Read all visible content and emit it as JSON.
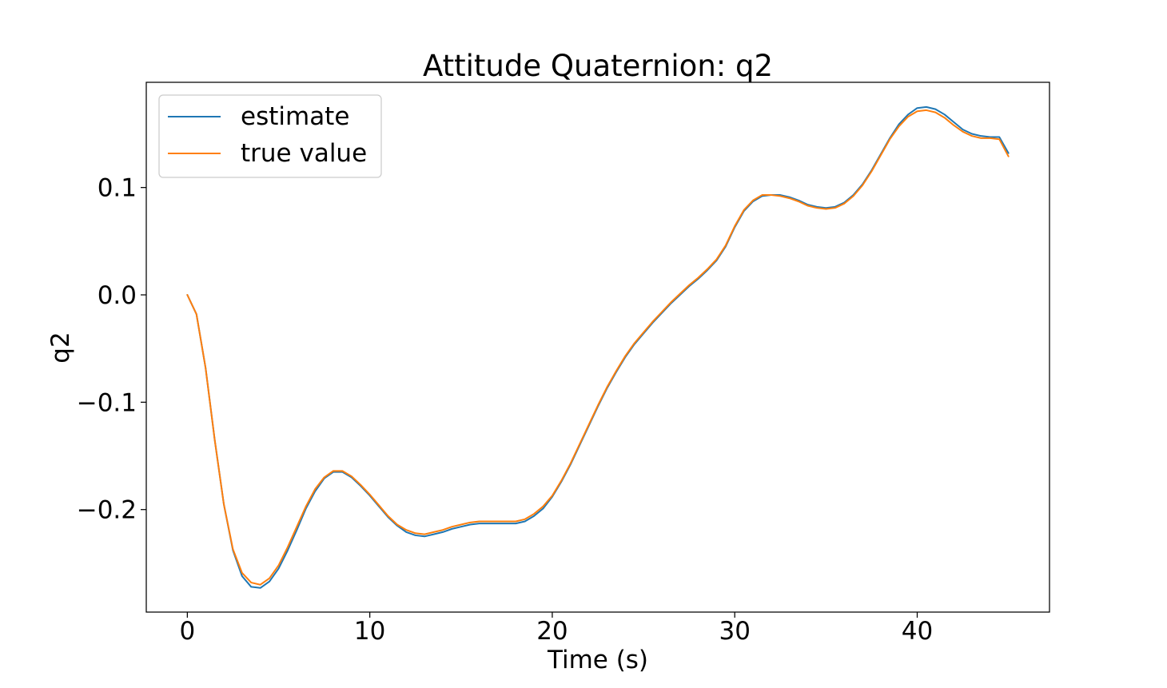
{
  "chart_data": {
    "type": "line",
    "title": "Attitude Quaternion: q2",
    "xlabel": "Time (s)",
    "ylabel": "q2",
    "xlim": [
      -2.25,
      47.25
    ],
    "ylim": [
      -0.2955,
      0.198
    ],
    "xticks": [
      0,
      10,
      20,
      30,
      40
    ],
    "xtick_labels": [
      "0",
      "10",
      "20",
      "30",
      "40"
    ],
    "yticks": [
      -0.2,
      -0.1,
      0.0,
      0.1
    ],
    "ytick_labels": [
      "−0.2",
      "−0.1",
      "0.0",
      "0.1"
    ],
    "grid": false,
    "legend_position": "upper-left",
    "series": [
      {
        "name": "estimate",
        "color": "#1f77b4",
        "x": [
          0,
          0.5,
          1,
          1.5,
          2,
          2.5,
          3,
          3.5,
          4,
          4.5,
          5,
          5.5,
          6,
          6.5,
          7,
          7.5,
          8,
          8.5,
          9,
          9.5,
          10,
          10.5,
          11,
          11.5,
          12,
          12.5,
          13,
          13.5,
          14,
          14.5,
          15,
          15.5,
          16,
          16.5,
          17,
          17.5,
          18,
          18.5,
          19,
          19.5,
          20,
          20.5,
          21,
          21.5,
          22,
          22.5,
          23,
          23.5,
          24,
          24.5,
          25,
          25.5,
          26,
          26.5,
          27,
          27.5,
          28,
          28.5,
          29,
          29.5,
          30,
          30.5,
          31,
          31.5,
          32,
          32.5,
          33,
          33.5,
          34,
          34.5,
          35,
          35.5,
          36,
          36.5,
          37,
          37.5,
          38,
          38.5,
          39,
          39.5,
          40,
          40.5,
          41,
          41.5,
          42,
          42.5,
          43,
          43.5,
          44,
          44.5,
          45
        ],
        "y": [
          0.0,
          -0.018,
          -0.068,
          -0.135,
          -0.195,
          -0.238,
          -0.262,
          -0.272,
          -0.273,
          -0.267,
          -0.255,
          -0.238,
          -0.219,
          -0.199,
          -0.183,
          -0.171,
          -0.165,
          -0.165,
          -0.17,
          -0.178,
          -0.187,
          -0.197,
          -0.207,
          -0.215,
          -0.221,
          -0.224,
          -0.225,
          -0.223,
          -0.221,
          -0.218,
          -0.216,
          -0.214,
          -0.213,
          -0.213,
          -0.213,
          -0.213,
          -0.213,
          -0.211,
          -0.206,
          -0.199,
          -0.188,
          -0.174,
          -0.158,
          -0.14,
          -0.122,
          -0.104,
          -0.087,
          -0.072,
          -0.058,
          -0.046,
          -0.036,
          -0.026,
          -0.017,
          -0.008,
          0.0,
          0.008,
          0.015,
          0.023,
          0.032,
          0.045,
          0.063,
          0.078,
          0.087,
          0.092,
          0.093,
          0.093,
          0.091,
          0.088,
          0.084,
          0.082,
          0.081,
          0.082,
          0.086,
          0.093,
          0.103,
          0.116,
          0.131,
          0.146,
          0.159,
          0.168,
          0.174,
          0.175,
          0.173,
          0.168,
          0.161,
          0.154,
          0.15,
          0.148,
          0.147,
          0.147,
          0.132
        ]
      },
      {
        "name": "true value",
        "color": "#ff7f0e",
        "x": [
          0,
          0.5,
          1,
          1.5,
          2,
          2.5,
          3,
          3.5,
          4,
          4.5,
          5,
          5.5,
          6,
          6.5,
          7,
          7.5,
          8,
          8.5,
          9,
          9.5,
          10,
          10.5,
          11,
          11.5,
          12,
          12.5,
          13,
          13.5,
          14,
          14.5,
          15,
          15.5,
          16,
          16.5,
          17,
          17.5,
          18,
          18.5,
          19,
          19.5,
          20,
          20.5,
          21,
          21.5,
          22,
          22.5,
          23,
          23.5,
          24,
          24.5,
          25,
          25.5,
          26,
          26.5,
          27,
          27.5,
          28,
          28.5,
          29,
          29.5,
          30,
          30.5,
          31,
          31.5,
          32,
          32.5,
          33,
          33.5,
          34,
          34.5,
          35,
          35.5,
          36,
          36.5,
          37,
          37.5,
          38,
          38.5,
          39,
          39.5,
          40,
          40.5,
          41,
          41.5,
          42,
          42.5,
          43,
          43.5,
          44,
          44.5,
          45
        ],
        "y": [
          0.0,
          -0.018,
          -0.068,
          -0.135,
          -0.195,
          -0.237,
          -0.259,
          -0.268,
          -0.27,
          -0.264,
          -0.252,
          -0.235,
          -0.216,
          -0.197,
          -0.181,
          -0.17,
          -0.164,
          -0.164,
          -0.169,
          -0.177,
          -0.186,
          -0.196,
          -0.206,
          -0.214,
          -0.219,
          -0.222,
          -0.223,
          -0.221,
          -0.219,
          -0.216,
          -0.214,
          -0.212,
          -0.211,
          -0.211,
          -0.211,
          -0.211,
          -0.211,
          -0.209,
          -0.204,
          -0.197,
          -0.187,
          -0.173,
          -0.157,
          -0.139,
          -0.121,
          -0.103,
          -0.086,
          -0.071,
          -0.057,
          -0.045,
          -0.035,
          -0.025,
          -0.016,
          -0.007,
          0.001,
          0.009,
          0.016,
          0.024,
          0.033,
          0.046,
          0.064,
          0.079,
          0.088,
          0.093,
          0.093,
          0.092,
          0.09,
          0.087,
          0.083,
          0.081,
          0.08,
          0.081,
          0.085,
          0.092,
          0.102,
          0.115,
          0.13,
          0.145,
          0.157,
          0.166,
          0.171,
          0.172,
          0.17,
          0.165,
          0.158,
          0.152,
          0.148,
          0.146,
          0.146,
          0.145,
          0.129
        ]
      }
    ]
  }
}
